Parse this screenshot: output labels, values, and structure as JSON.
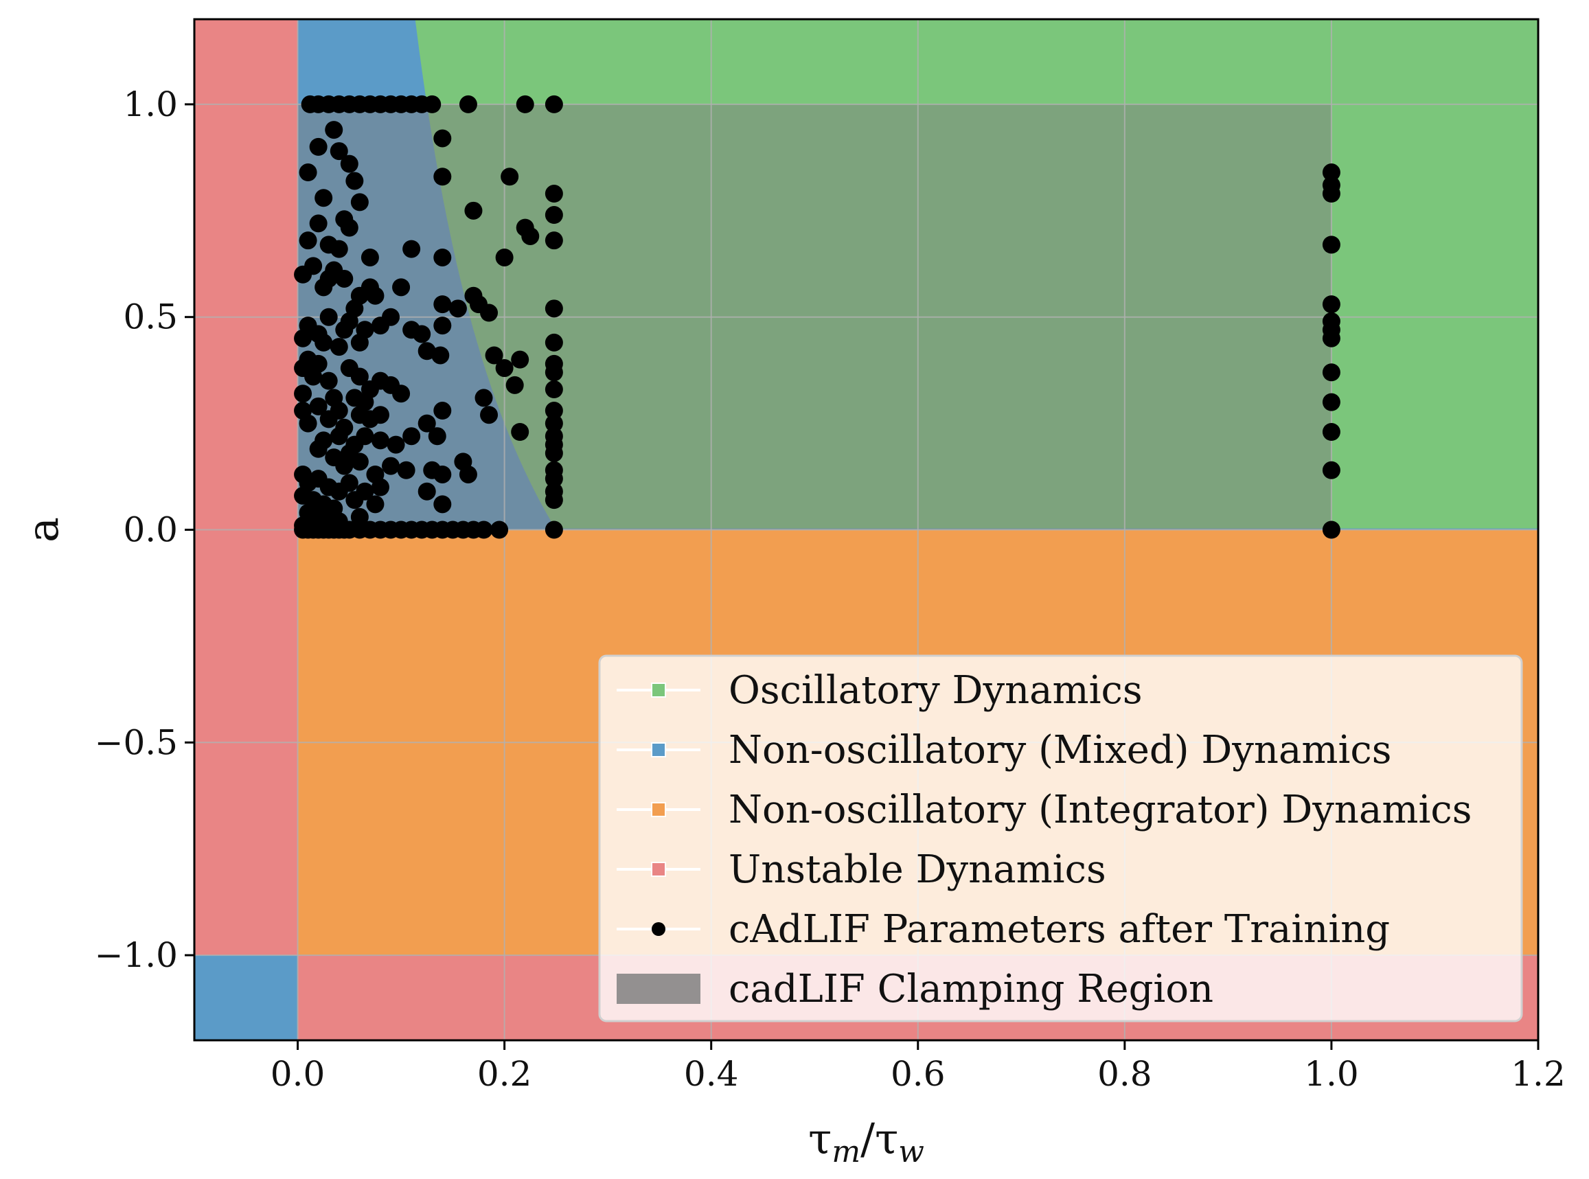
{
  "chart_data": {
    "type": "scatter",
    "title": "",
    "xlabel": "τm/τw",
    "ylabel": "a",
    "xlim": [
      -0.1,
      1.2
    ],
    "ylim": [
      -1.2,
      1.2
    ],
    "xticks": [
      0.0,
      0.2,
      0.4,
      0.6,
      0.8,
      1.0,
      1.2
    ],
    "yticks": [
      -1.0,
      -0.5,
      0.0,
      0.5,
      1.0
    ],
    "xtick_labels": [
      "0.0",
      "0.2",
      "0.4",
      "0.6",
      "0.8",
      "1.0",
      "1.2"
    ],
    "ytick_labels": [
      "−1.0",
      "−0.5",
      "0.0",
      "0.5",
      "1.0"
    ],
    "grid": true,
    "legend_position": "lower-right",
    "regions": [
      {
        "name": "Oscillatory Dynamics",
        "color": "#7bc67b",
        "rule": "a > 0 and x > 1/(4*(1+a))"
      },
      {
        "name": "Non-oscillatory (Mixed) Dynamics",
        "color": "#5b9bc8",
        "rule": "a > 0 and 0 <= x <= 1/(4*(1+a)); also x < 0 and a < -1"
      },
      {
        "name": "Non-oscillatory (Integrator) Dynamics",
        "color": "#f29e50",
        "rule": "-1 < a < 0 and x >= 0"
      },
      {
        "name": "Unstable Dynamics",
        "color": "#e98585",
        "rule": "x < 0 (a > -1) or a < -1 (x >= 0)"
      }
    ],
    "clamping_region": {
      "name": "cadLIF Clamping Region",
      "color": "#808080",
      "x": [
        0.0,
        1.0
      ],
      "y": [
        0.0,
        1.0
      ]
    },
    "series": [
      {
        "name": "cAdLIF Parameters after Training",
        "color": "#000000",
        "points": [
          [
            0.012,
            1.0
          ],
          [
            0.02,
            1.0
          ],
          [
            0.03,
            1.0
          ],
          [
            0.04,
            1.0
          ],
          [
            0.05,
            1.0
          ],
          [
            0.06,
            1.0
          ],
          [
            0.07,
            1.0
          ],
          [
            0.08,
            1.0
          ],
          [
            0.09,
            1.0
          ],
          [
            0.1,
            1.0
          ],
          [
            0.11,
            1.0
          ],
          [
            0.12,
            1.0
          ],
          [
            0.13,
            1.0
          ],
          [
            0.165,
            1.0
          ],
          [
            0.22,
            1.0
          ],
          [
            0.248,
            1.0
          ],
          [
            0.035,
            0.94
          ],
          [
            0.14,
            0.92
          ],
          [
            0.02,
            0.9
          ],
          [
            0.04,
            0.89
          ],
          [
            0.05,
            0.86
          ],
          [
            0.01,
            0.84
          ],
          [
            0.055,
            0.82
          ],
          [
            0.14,
            0.83
          ],
          [
            0.205,
            0.83
          ],
          [
            0.248,
            0.79
          ],
          [
            0.025,
            0.78
          ],
          [
            0.06,
            0.77
          ],
          [
            0.17,
            0.75
          ],
          [
            0.045,
            0.73
          ],
          [
            0.248,
            0.74
          ],
          [
            0.02,
            0.72
          ],
          [
            0.05,
            0.71
          ],
          [
            0.22,
            0.71
          ],
          [
            0.01,
            0.68
          ],
          [
            0.03,
            0.67
          ],
          [
            0.225,
            0.69
          ],
          [
            0.248,
            0.68
          ],
          [
            0.04,
            0.66
          ],
          [
            0.11,
            0.66
          ],
          [
            0.015,
            0.62
          ],
          [
            0.005,
            0.6
          ],
          [
            0.035,
            0.61
          ],
          [
            0.07,
            0.64
          ],
          [
            0.14,
            0.64
          ],
          [
            0.2,
            0.64
          ],
          [
            0.025,
            0.57
          ],
          [
            0.03,
            0.59
          ],
          [
            0.045,
            0.59
          ],
          [
            0.06,
            0.55
          ],
          [
            0.07,
            0.57
          ],
          [
            0.075,
            0.55
          ],
          [
            0.1,
            0.57
          ],
          [
            0.14,
            0.53
          ],
          [
            0.17,
            0.55
          ],
          [
            0.175,
            0.53
          ],
          [
            0.155,
            0.52
          ],
          [
            0.185,
            0.51
          ],
          [
            0.248,
            0.52
          ],
          [
            0.01,
            0.48
          ],
          [
            0.02,
            0.46
          ],
          [
            0.03,
            0.5
          ],
          [
            0.045,
            0.47
          ],
          [
            0.05,
            0.49
          ],
          [
            0.055,
            0.52
          ],
          [
            0.065,
            0.47
          ],
          [
            0.08,
            0.48
          ],
          [
            0.09,
            0.5
          ],
          [
            0.11,
            0.47
          ],
          [
            0.12,
            0.46
          ],
          [
            0.14,
            0.48
          ],
          [
            0.005,
            0.45
          ],
          [
            0.025,
            0.44
          ],
          [
            0.04,
            0.43
          ],
          [
            0.06,
            0.44
          ],
          [
            0.125,
            0.42
          ],
          [
            0.138,
            0.41
          ],
          [
            0.01,
            0.4
          ],
          [
            0.02,
            0.39
          ],
          [
            0.19,
            0.41
          ],
          [
            0.2,
            0.38
          ],
          [
            0.215,
            0.4
          ],
          [
            0.248,
            0.44
          ],
          [
            0.248,
            0.39
          ],
          [
            0.248,
            0.37
          ],
          [
            0.005,
            0.38
          ],
          [
            0.015,
            0.36
          ],
          [
            0.03,
            0.35
          ],
          [
            0.05,
            0.38
          ],
          [
            0.06,
            0.36
          ],
          [
            0.07,
            0.33
          ],
          [
            0.08,
            0.35
          ],
          [
            0.09,
            0.34
          ],
          [
            0.1,
            0.32
          ],
          [
            0.005,
            0.32
          ],
          [
            0.035,
            0.31
          ],
          [
            0.02,
            0.29
          ],
          [
            0.04,
            0.28
          ],
          [
            0.055,
            0.31
          ],
          [
            0.065,
            0.3
          ],
          [
            0.18,
            0.31
          ],
          [
            0.21,
            0.34
          ],
          [
            0.248,
            0.33
          ],
          [
            0.005,
            0.28
          ],
          [
            0.01,
            0.25
          ],
          [
            0.03,
            0.26
          ],
          [
            0.045,
            0.24
          ],
          [
            0.06,
            0.27
          ],
          [
            0.07,
            0.26
          ],
          [
            0.08,
            0.27
          ],
          [
            0.14,
            0.28
          ],
          [
            0.185,
            0.27
          ],
          [
            0.248,
            0.28
          ],
          [
            0.025,
            0.21
          ],
          [
            0.04,
            0.22
          ],
          [
            0.055,
            0.2
          ],
          [
            0.065,
            0.22
          ],
          [
            0.08,
            0.21
          ],
          [
            0.095,
            0.2
          ],
          [
            0.11,
            0.22
          ],
          [
            0.125,
            0.25
          ],
          [
            0.135,
            0.22
          ],
          [
            0.215,
            0.23
          ],
          [
            0.248,
            0.25
          ],
          [
            0.248,
            0.22
          ],
          [
            0.248,
            0.2
          ],
          [
            0.248,
            0.18
          ],
          [
            0.02,
            0.19
          ],
          [
            0.035,
            0.17
          ],
          [
            0.05,
            0.18
          ],
          [
            0.045,
            0.15
          ],
          [
            0.06,
            0.16
          ],
          [
            0.075,
            0.13
          ],
          [
            0.09,
            0.15
          ],
          [
            0.105,
            0.14
          ],
          [
            0.13,
            0.14
          ],
          [
            0.14,
            0.13
          ],
          [
            0.16,
            0.16
          ],
          [
            0.165,
            0.13
          ],
          [
            0.248,
            0.14
          ],
          [
            0.248,
            0.12
          ],
          [
            0.005,
            0.13
          ],
          [
            0.01,
            0.11
          ],
          [
            0.02,
            0.12
          ],
          [
            0.03,
            0.1
          ],
          [
            0.04,
            0.09
          ],
          [
            0.05,
            0.11
          ],
          [
            0.065,
            0.09
          ],
          [
            0.08,
            0.1
          ],
          [
            0.125,
            0.09
          ],
          [
            0.005,
            0.08
          ],
          [
            0.015,
            0.07
          ],
          [
            0.025,
            0.06
          ],
          [
            0.035,
            0.05
          ],
          [
            0.055,
            0.07
          ],
          [
            0.075,
            0.06
          ],
          [
            0.14,
            0.06
          ],
          [
            0.248,
            0.09
          ],
          [
            0.248,
            0.07
          ],
          [
            0.01,
            0.04
          ],
          [
            0.02,
            0.03
          ],
          [
            0.03,
            0.03
          ],
          [
            0.005,
            0.01
          ],
          [
            0.015,
            0.02
          ],
          [
            0.04,
            0.02
          ],
          [
            0.06,
            0.03
          ],
          [
            0.005,
            0.0
          ],
          [
            0.01,
            0.0
          ],
          [
            0.015,
            0.0
          ],
          [
            0.02,
            0.0
          ],
          [
            0.025,
            0.0
          ],
          [
            0.03,
            0.0
          ],
          [
            0.035,
            0.0
          ],
          [
            0.04,
            0.0
          ],
          [
            0.045,
            0.0
          ],
          [
            0.05,
            0.0
          ],
          [
            0.06,
            0.0
          ],
          [
            0.07,
            0.0
          ],
          [
            0.08,
            0.0
          ],
          [
            0.09,
            0.0
          ],
          [
            0.1,
            0.0
          ],
          [
            0.11,
            0.0
          ],
          [
            0.12,
            0.0
          ],
          [
            0.13,
            0.0
          ],
          [
            0.14,
            0.0
          ],
          [
            0.15,
            0.0
          ],
          [
            0.16,
            0.0
          ],
          [
            0.17,
            0.0
          ],
          [
            0.18,
            0.0
          ],
          [
            0.195,
            0.0
          ],
          [
            0.248,
            0.0
          ],
          [
            1.0,
            0.84
          ],
          [
            1.0,
            0.81
          ],
          [
            1.0,
            0.79
          ],
          [
            1.0,
            0.67
          ],
          [
            1.0,
            0.53
          ],
          [
            1.0,
            0.49
          ],
          [
            1.0,
            0.47
          ],
          [
            1.0,
            0.45
          ],
          [
            1.0,
            0.37
          ],
          [
            1.0,
            0.3
          ],
          [
            1.0,
            0.23
          ],
          [
            1.0,
            0.14
          ],
          [
            1.0,
            0.0
          ]
        ]
      }
    ],
    "legend": [
      {
        "label": "Oscillatory Dynamics",
        "symbol": "square",
        "color": "#7bc67b"
      },
      {
        "label": "Non-oscillatory (Mixed) Dynamics",
        "symbol": "square",
        "color": "#5b9bc8"
      },
      {
        "label": "Non-oscillatory (Integrator) Dynamics",
        "symbol": "square",
        "color": "#f29e50"
      },
      {
        "label": "Unstable Dynamics",
        "symbol": "square",
        "color": "#e98585"
      },
      {
        "label": "cAdLIF Parameters after Training",
        "symbol": "dot",
        "color": "#000000"
      },
      {
        "label": "cadLIF Clamping Region",
        "symbol": "patch",
        "color": "#808080"
      }
    ]
  }
}
